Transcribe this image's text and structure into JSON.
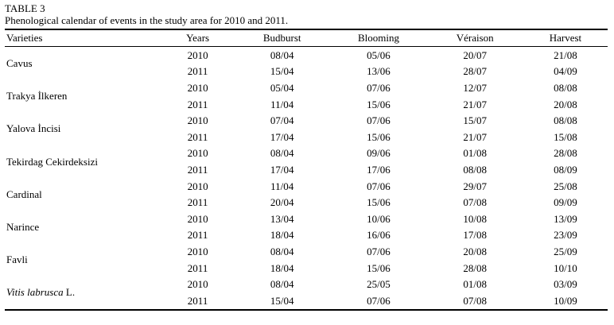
{
  "doc": {
    "table_label": "TABLE 3",
    "caption": "Phenological calendar of events in the study area for 2010 and 2011."
  },
  "table": {
    "headers": [
      "Varieties",
      "Years",
      "Budburst",
      "Blooming",
      "Véraison",
      "Harvest"
    ],
    "varieties": [
      {
        "name": "Cavus",
        "rows": [
          [
            "2010",
            "08/04",
            "05/06",
            "20/07",
            "21/08"
          ],
          [
            "2011",
            "15/04",
            "13/06",
            "28/07",
            "04/09"
          ]
        ]
      },
      {
        "name": "Trakya İlkeren",
        "rows": [
          [
            "2010",
            "05/04",
            "07/06",
            "12/07",
            "08/08"
          ],
          [
            "2011",
            "11/04",
            "15/06",
            "21/07",
            "20/08"
          ]
        ]
      },
      {
        "name": "Yalova İncisi",
        "rows": [
          [
            "2010",
            "07/04",
            "07/06",
            "15/07",
            "08/08"
          ],
          [
            "2011",
            "17/04",
            "15/06",
            "21/07",
            "15/08"
          ]
        ]
      },
      {
        "name": "Tekirdag Cekirdeksizi",
        "rows": [
          [
            "2010",
            "08/04",
            "09/06",
            "01/08",
            "28/08"
          ],
          [
            "2011",
            "17/04",
            "17/06",
            "08/08",
            "08/09"
          ]
        ]
      },
      {
        "name": "Cardinal",
        "rows": [
          [
            "2010",
            "11/04",
            "07/06",
            "29/07",
            "25/08"
          ],
          [
            "2011",
            "20/04",
            "15/06",
            "07/08",
            "09/09"
          ]
        ]
      },
      {
        "name": "Narince",
        "rows": [
          [
            "2010",
            "13/04",
            "10/06",
            "10/08",
            "13/09"
          ],
          [
            "2011",
            "18/04",
            "16/06",
            "17/08",
            "23/09"
          ]
        ]
      },
      {
        "name": "Favli",
        "rows": [
          [
            "2010",
            "08/04",
            "07/06",
            "20/08",
            "25/09"
          ],
          [
            "2011",
            "18/04",
            "15/06",
            "28/08",
            "10/10"
          ]
        ]
      },
      {
        "name": "Vitis labrusca",
        "suffix": "L.",
        "rows": [
          [
            "2010",
            "08/04",
            "25/05",
            "01/08",
            "03/09"
          ],
          [
            "2011",
            "15/04",
            "07/06",
            "07/08",
            "10/09"
          ]
        ]
      }
    ]
  }
}
